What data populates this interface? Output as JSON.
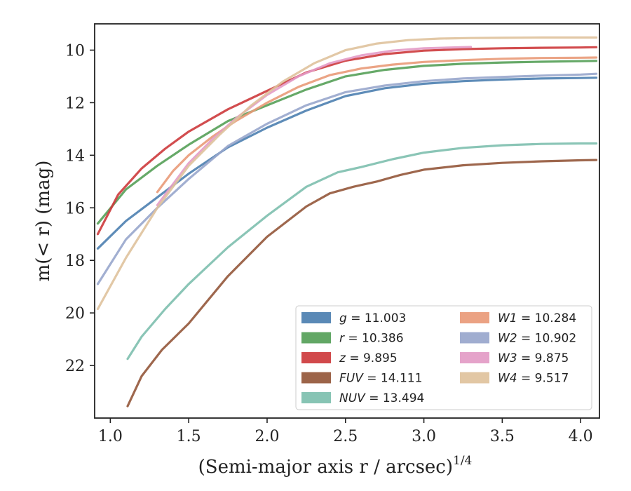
{
  "chart_data": {
    "type": "line",
    "xlabel": "(Semi-major axis r / arcsec)",
    "xlabel_sup": "1/4",
    "ylabel": "m(< r) (mag)",
    "xlim": [
      0.9,
      4.12
    ],
    "ylim": [
      24.0,
      9.0
    ],
    "y_inverted": true,
    "grid": false,
    "legend_position": "lower-right",
    "x_ticks": [
      "1.0",
      "1.5",
      "2.0",
      "2.5",
      "3.0",
      "3.5",
      "4.0"
    ],
    "y_ticks": [
      "10",
      "12",
      "14",
      "16",
      "18",
      "20",
      "22"
    ],
    "series": [
      {
        "name": "g = 11.003",
        "label_var": "g",
        "label_val": "11.003",
        "color": "#4c7fb0",
        "x": [
          0.92,
          1.1,
          1.3,
          1.5,
          1.75,
          2.0,
          2.25,
          2.5,
          2.75,
          3.0,
          3.25,
          3.5,
          3.75,
          4.0,
          4.1
        ],
        "y": [
          17.55,
          16.5,
          15.6,
          14.7,
          13.7,
          12.95,
          12.3,
          11.75,
          11.45,
          11.28,
          11.18,
          11.12,
          11.08,
          11.06,
          11.05
        ]
      },
      {
        "name": "r = 10.386",
        "label_var": "r",
        "label_val": "10.386",
        "color": "#55a058",
        "x": [
          0.92,
          1.1,
          1.3,
          1.5,
          1.75,
          2.0,
          2.25,
          2.5,
          2.75,
          3.0,
          3.25,
          3.5,
          3.75,
          4.0,
          4.1
        ],
        "y": [
          16.6,
          15.3,
          14.4,
          13.6,
          12.7,
          12.1,
          11.5,
          11.0,
          10.75,
          10.6,
          10.52,
          10.47,
          10.44,
          10.42,
          10.41
        ]
      },
      {
        "name": "z = 9.895",
        "label_var": "z",
        "label_val": "9.895",
        "color": "#cd3a3c",
        "x": [
          0.92,
          1.05,
          1.2,
          1.35,
          1.5,
          1.75,
          2.0,
          2.25,
          2.5,
          2.75,
          3.0,
          3.25,
          3.5,
          3.75,
          4.0,
          4.1
        ],
        "y": [
          17.0,
          15.5,
          14.5,
          13.75,
          13.1,
          12.25,
          11.55,
          10.85,
          10.4,
          10.15,
          10.02,
          9.96,
          9.93,
          9.91,
          9.9,
          9.89
        ]
      },
      {
        "name": "FUV = 14.111",
        "label_var": "FUV",
        "label_val": "14.111",
        "color": "#94573a",
        "x": [
          1.11,
          1.2,
          1.33,
          1.5,
          1.75,
          2.0,
          2.25,
          2.4,
          2.55,
          2.7,
          2.85,
          3.0,
          3.25,
          3.5,
          3.75,
          4.0,
          4.1
        ],
        "y": [
          23.55,
          22.4,
          21.4,
          20.4,
          18.6,
          17.1,
          15.95,
          15.45,
          15.2,
          15.0,
          14.75,
          14.55,
          14.38,
          14.29,
          14.23,
          14.19,
          14.18
        ]
      },
      {
        "name": "NUV = 13.494",
        "label_var": "NUV",
        "label_val": "13.494",
        "color": "#7dbfae",
        "x": [
          1.11,
          1.2,
          1.35,
          1.5,
          1.75,
          2.0,
          2.25,
          2.45,
          2.6,
          2.8,
          3.0,
          3.25,
          3.5,
          3.75,
          4.0,
          4.1
        ],
        "y": [
          21.75,
          20.9,
          19.85,
          18.9,
          17.5,
          16.3,
          15.2,
          14.65,
          14.45,
          14.15,
          13.9,
          13.72,
          13.62,
          13.57,
          13.55,
          13.55
        ]
      },
      {
        "name": "W1 = 10.284",
        "label_var": "W1",
        "label_val": "10.284",
        "color": "#e99a78",
        "x": [
          1.3,
          1.4,
          1.5,
          1.65,
          1.8,
          2.0,
          2.2,
          2.4,
          2.6,
          2.8,
          3.0,
          3.25,
          3.5,
          3.75,
          4.0,
          4.1
        ],
        "y": [
          15.4,
          14.6,
          14.0,
          13.3,
          12.7,
          12.0,
          11.4,
          10.95,
          10.7,
          10.55,
          10.45,
          10.38,
          10.33,
          10.3,
          10.29,
          10.28
        ]
      },
      {
        "name": "W2 = 10.902",
        "label_var": "W2",
        "label_val": "10.902",
        "color": "#98a6cc",
        "x": [
          0.92,
          1.1,
          1.3,
          1.5,
          1.75,
          2.0,
          2.25,
          2.5,
          2.75,
          3.0,
          3.25,
          3.5,
          3.75,
          4.0,
          4.1
        ],
        "y": [
          18.9,
          17.2,
          16.0,
          14.9,
          13.65,
          12.8,
          12.1,
          11.6,
          11.35,
          11.18,
          11.08,
          11.02,
          10.97,
          10.93,
          10.9
        ]
      },
      {
        "name": "W3 = 9.875",
        "label_var": "W3",
        "label_val": "9.875",
        "color": "#e39bc6",
        "x": [
          1.3,
          1.4,
          1.5,
          1.65,
          1.8,
          2.0,
          2.2,
          2.4,
          2.6,
          2.8,
          3.0,
          3.3
        ],
        "y": [
          15.9,
          15.1,
          14.3,
          13.4,
          12.6,
          11.7,
          11.0,
          10.5,
          10.2,
          10.02,
          9.93,
          9.88
        ]
      },
      {
        "name": "W4 = 9.517",
        "label_var": "W4",
        "label_val": "9.517",
        "color": "#dfc29c",
        "x": [
          0.92,
          1.1,
          1.3,
          1.5,
          1.7,
          1.9,
          2.1,
          2.3,
          2.5,
          2.7,
          2.9,
          3.1,
          3.3,
          3.5,
          3.75,
          4.0,
          4.1
        ],
        "y": [
          19.85,
          17.9,
          16.0,
          14.4,
          13.2,
          12.1,
          11.2,
          10.5,
          10.0,
          9.75,
          9.62,
          9.56,
          9.54,
          9.53,
          9.52,
          9.52,
          9.52
        ]
      }
    ]
  }
}
